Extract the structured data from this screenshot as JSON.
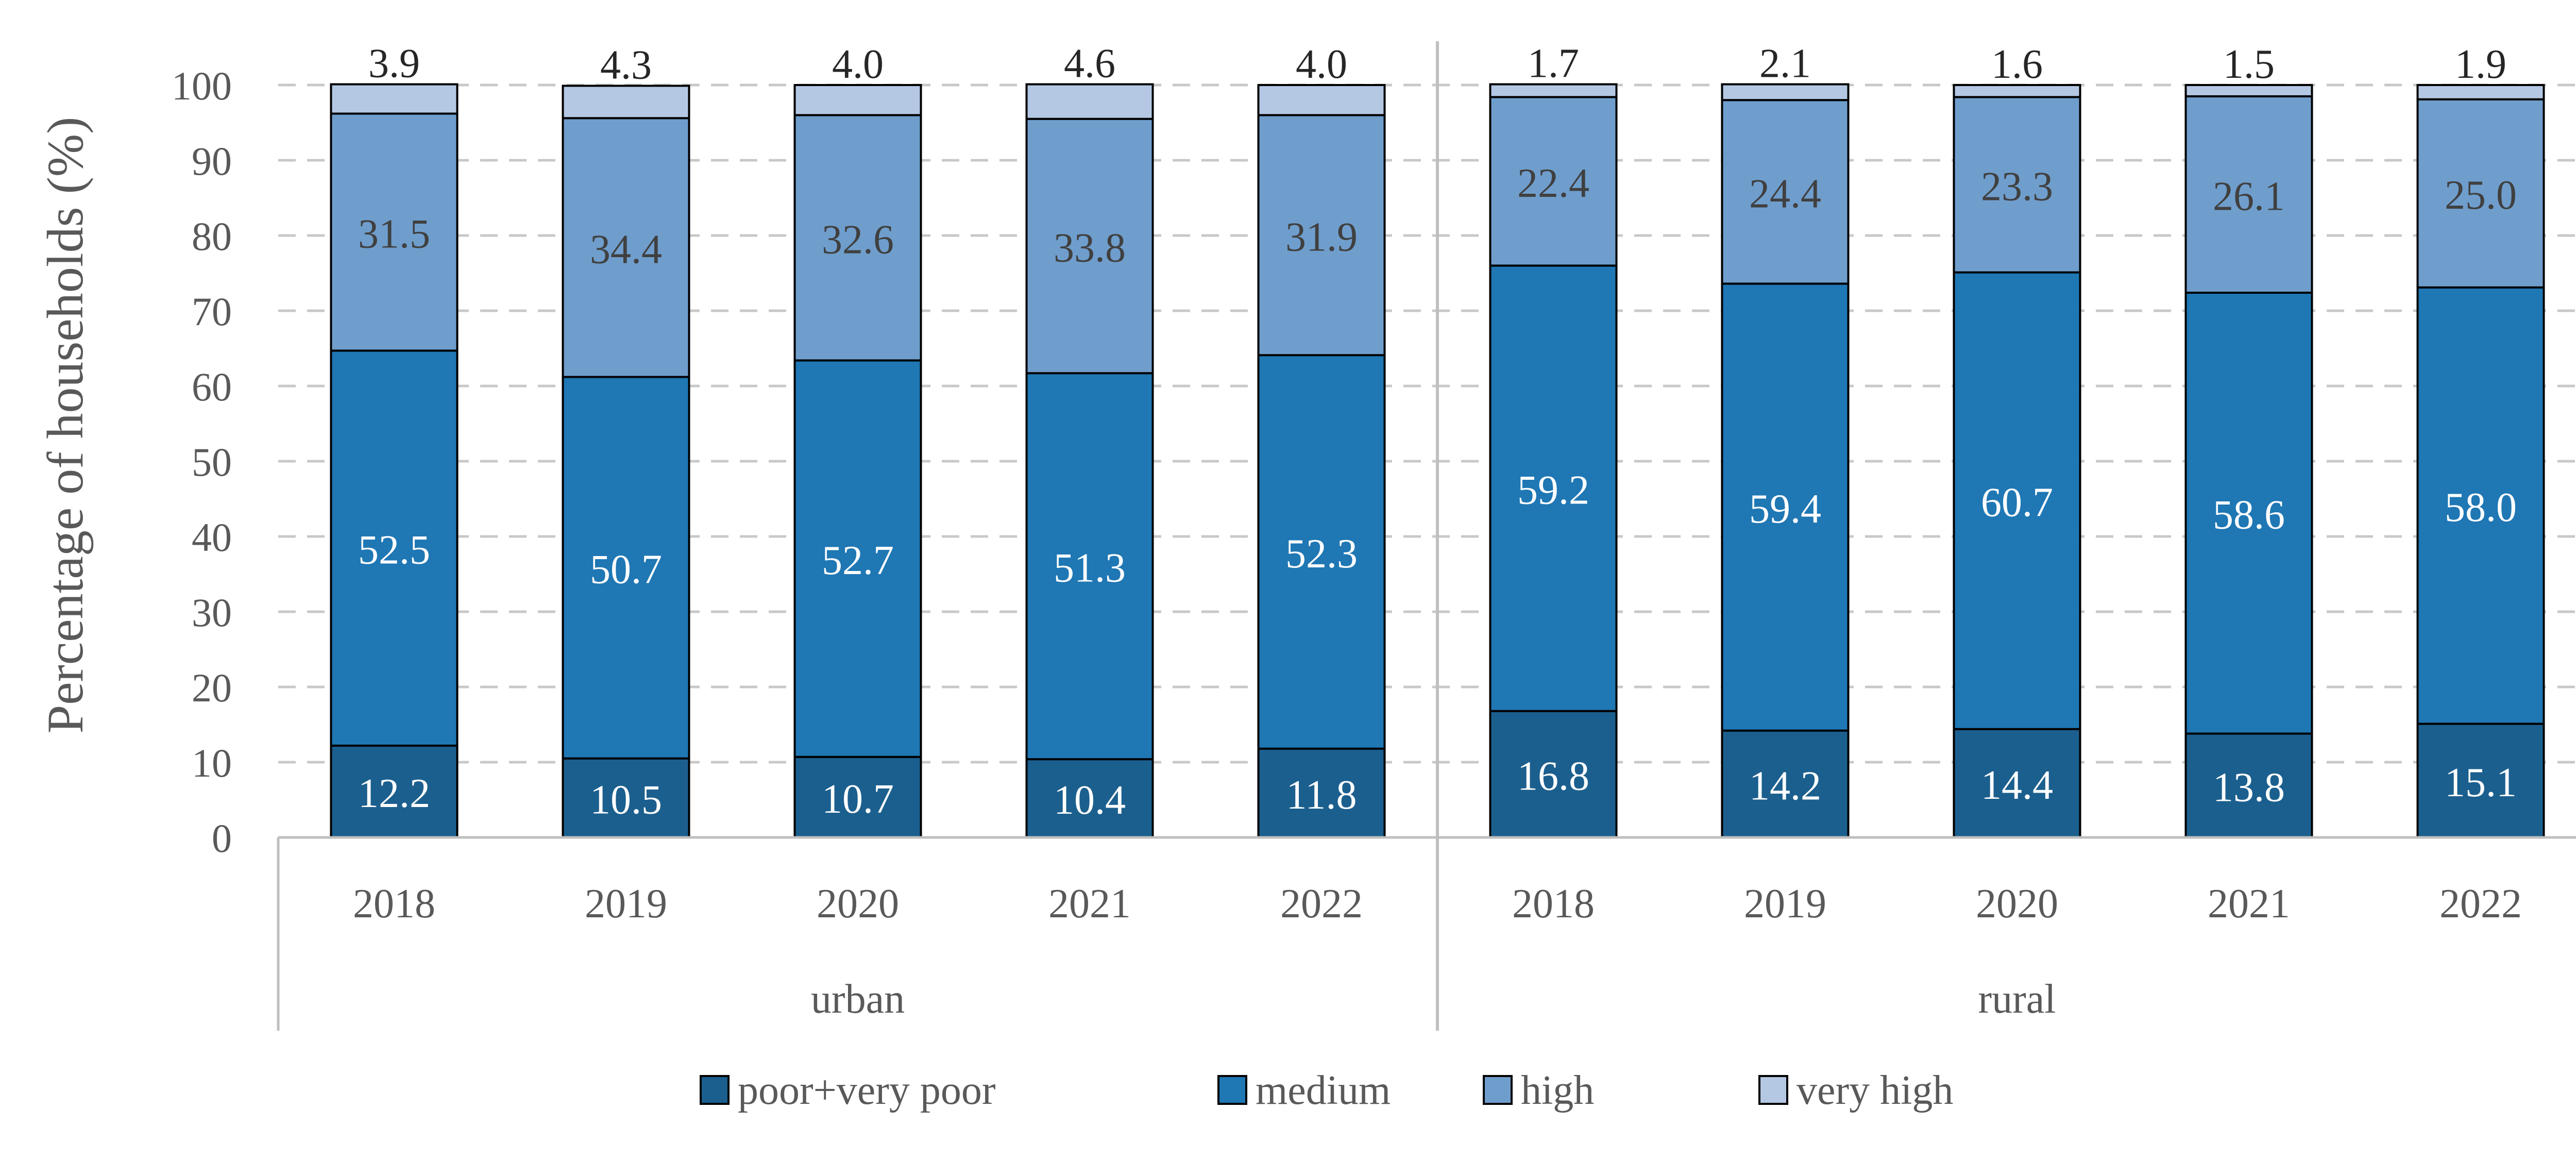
{
  "chart_data": {
    "type": "bar",
    "stacked": true,
    "title": "",
    "xlabel": "",
    "ylabel": "Percentage of households (%)",
    "ylim": [
      0,
      100
    ],
    "yticks": [
      "0",
      "10",
      "20",
      "30",
      "40",
      "50",
      "60",
      "70",
      "80",
      "90",
      "100"
    ],
    "grid": true,
    "legend_position": "bottom",
    "groups": [
      {
        "name": "urban",
        "categories": [
          "2018",
          "2019",
          "2020",
          "2021",
          "2022"
        ]
      },
      {
        "name": "rural",
        "categories": [
          "2018",
          "2019",
          "2020",
          "2021",
          "2022"
        ]
      }
    ],
    "series": [
      {
        "name": "poor+very poor",
        "color": "#1b5f8e",
        "label_color": "#ffffff",
        "values": [
          12.2,
          10.5,
          10.7,
          10.4,
          11.8,
          16.8,
          14.2,
          14.4,
          13.8,
          15.1
        ],
        "labels": [
          "12.2",
          "10.5",
          "10.7",
          "10.4",
          "11.8",
          "16.8",
          "14.2",
          "14.4",
          "13.8",
          "15.1"
        ]
      },
      {
        "name": "medium",
        "color": "#1f77b4",
        "label_color": "#ffffff",
        "values": [
          52.5,
          50.7,
          52.7,
          51.3,
          52.3,
          59.2,
          59.4,
          60.7,
          58.6,
          58.0
        ],
        "labels": [
          "52.5",
          "50.7",
          "52.7",
          "51.3",
          "52.3",
          "59.2",
          "59.4",
          "60.7",
          "58.6",
          "58.0"
        ]
      },
      {
        "name": "high",
        "color": "#6f9ecd",
        "label_color": "#404040",
        "values": [
          31.5,
          34.4,
          32.6,
          33.8,
          31.9,
          22.4,
          24.4,
          23.3,
          26.1,
          25.0
        ],
        "labels": [
          "31.5",
          "34.4",
          "32.6",
          "33.8",
          "31.9",
          "22.4",
          "24.4",
          "23.3",
          "26.1",
          "25.0"
        ]
      },
      {
        "name": "very high",
        "color": "#b4c8e4",
        "label_color": "#262626",
        "values": [
          3.9,
          4.3,
          4.0,
          4.6,
          4.0,
          1.7,
          2.1,
          1.6,
          1.5,
          1.9
        ],
        "labels": [
          "3.9",
          "4.3",
          "4.0",
          "4.6",
          "4.0",
          "1.7",
          "2.1",
          "1.6",
          "1.5",
          "1.9"
        ]
      }
    ]
  }
}
